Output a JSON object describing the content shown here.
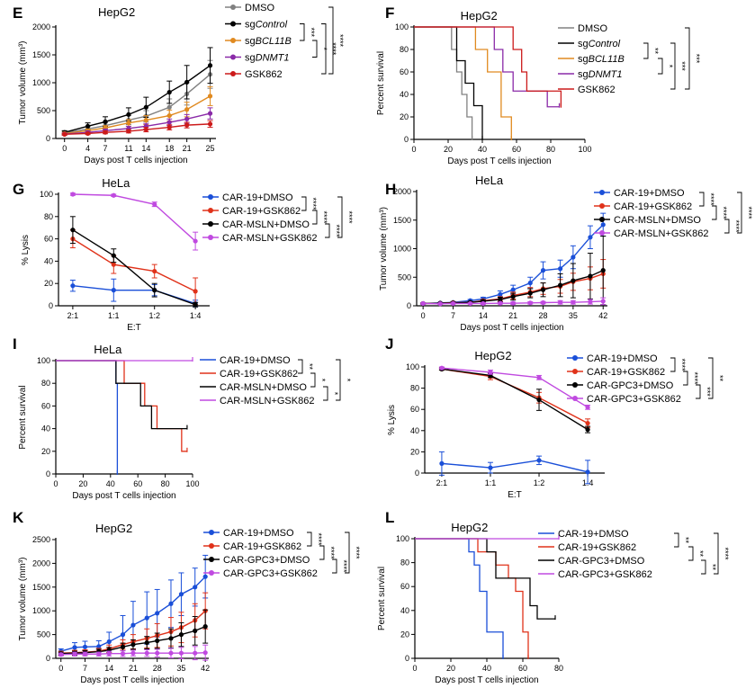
{
  "figure_title": "Tumor growth, cytotoxicity and survival panels",
  "chart_data": [
    {
      "id": "E",
      "label": "E",
      "type": "line",
      "title": "HepG2",
      "xlabel": "Days post T cells injection",
      "ylabel": "Tumor volume (mm³)",
      "x": [
        0,
        4,
        7,
        11,
        14,
        18,
        21,
        25
      ],
      "xlim": [
        -1.5,
        26
      ],
      "ylim": [
        0,
        2000
      ],
      "xticks": [
        0,
        4,
        7,
        11,
        14,
        18,
        21,
        25
      ],
      "yticks": [
        0,
        500,
        1000,
        1500,
        2000
      ],
      "series": [
        {
          "name": "DMSO",
          "color": "#808080",
          "values": [
            100,
            170,
            230,
            330,
            400,
            560,
            800,
            1150
          ],
          "err": [
            30,
            40,
            50,
            80,
            100,
            150,
            200,
            250
          ]
        },
        {
          "name": "sgControl",
          "color": "#000000",
          "values": [
            110,
            220,
            300,
            430,
            560,
            830,
            1010,
            1310
          ],
          "err": [
            30,
            60,
            90,
            120,
            180,
            200,
            300,
            320
          ]
        },
        {
          "name": "sgBCL11B",
          "color": "#e08a20",
          "values": [
            90,
            140,
            190,
            280,
            330,
            410,
            520,
            760
          ],
          "err": [
            20,
            30,
            40,
            60,
            80,
            100,
            130,
            170
          ]
        },
        {
          "name": "sgDNMT1",
          "color": "#8a2aa8",
          "values": [
            80,
            110,
            140,
            180,
            220,
            290,
            350,
            450
          ],
          "err": [
            20,
            25,
            30,
            40,
            50,
            60,
            80,
            100
          ]
        },
        {
          "name": "GSK862",
          "color": "#cc1a1a",
          "values": [
            75,
            90,
            110,
            130,
            160,
            200,
            240,
            260
          ],
          "err": [
            15,
            20,
            25,
            30,
            40,
            45,
            50,
            60
          ]
        }
      ],
      "legend_labels": [
        "DMSO",
        "sgControl",
        "sgBCL11B",
        "sgDNMT1",
        "GSK862"
      ],
      "legend_italic": [
        false,
        true,
        true,
        true,
        false
      ],
      "legend_prefix": [
        "",
        "sg",
        "sg",
        "sg",
        ""
      ],
      "legend_rest": [
        "DMSO",
        "Control",
        "BCL11B",
        "DNMT1",
        "GSK862"
      ],
      "significance": [
        "***",
        "*",
        "****",
        "****"
      ]
    },
    {
      "id": "F",
      "label": "F",
      "type": "line",
      "subtype": "survival",
      "title": "HepG2",
      "xlabel": "Days post T cells injection",
      "ylabel": "Percent survival",
      "xlim": [
        0,
        100
      ],
      "ylim": [
        0,
        100
      ],
      "xticks": [
        0,
        20,
        40,
        60,
        80,
        100
      ],
      "yticks": [
        0,
        20,
        40,
        60,
        80,
        100
      ],
      "series": [
        {
          "name": "DMSO",
          "color": "#808080",
          "x": [
            0,
            22,
            25,
            28,
            31,
            34
          ],
          "values": [
            100,
            80,
            60,
            40,
            20,
            0
          ]
        },
        {
          "name": "sgControl",
          "color": "#000000",
          "x": [
            0,
            25,
            30,
            35,
            40
          ],
          "values": [
            100,
            70,
            50,
            30,
            0
          ]
        },
        {
          "name": "sgBCL11B",
          "color": "#e08a20",
          "x": [
            0,
            36,
            43,
            51,
            57
          ],
          "values": [
            100,
            80,
            60,
            20,
            0
          ]
        },
        {
          "name": "sgDNMT1",
          "color": "#8a2aa8",
          "x": [
            0,
            47,
            52,
            58,
            78,
            85
          ],
          "values": [
            100,
            80,
            60,
            43,
            29,
            29
          ]
        },
        {
          "name": "GSK862",
          "color": "#cc1a1a",
          "x": [
            0,
            58,
            63,
            66,
            70,
            86
          ],
          "values": [
            100,
            80,
            60,
            43,
            43,
            29
          ]
        }
      ],
      "legend_labels": [
        "DMSO",
        "sgControl",
        "sgBCL11B",
        "sgDNMT1",
        "GSK862"
      ],
      "legend_italic": [
        false,
        true,
        true,
        true,
        false
      ],
      "legend_prefix": [
        "",
        "sg",
        "sg",
        "sg",
        ""
      ],
      "legend_rest": [
        "DMSO",
        "Control",
        "BCL11B",
        "DNMT1",
        "GSK862"
      ],
      "significance": [
        "**",
        "*",
        "***",
        "***"
      ]
    },
    {
      "id": "G",
      "label": "G",
      "type": "line",
      "title": "HeLa",
      "xlabel": "E:T",
      "ylabel": "% Lysis",
      "categories": [
        "2:1",
        "1:1",
        "1:2",
        "1:4"
      ],
      "ylim": [
        0,
        100
      ],
      "yticks": [
        0,
        20,
        40,
        60,
        80,
        100
      ],
      "series": [
        {
          "name": "CAR-19+DMSO",
          "color": "#1a4fd8",
          "values": [
            18,
            14,
            14,
            2
          ],
          "err": [
            5,
            10,
            5,
            3
          ]
        },
        {
          "name": "CAR-19+GSK862",
          "color": "#e0321a",
          "values": [
            60,
            37,
            31,
            13
          ],
          "err": [
            8,
            8,
            6,
            12
          ]
        },
        {
          "name": "CAR-MSLN+DMSO",
          "color": "#000000",
          "values": [
            68,
            45,
            14,
            1
          ],
          "err": [
            12,
            6,
            6,
            2
          ]
        },
        {
          "name": "CAR-MSLN+GSK862",
          "color": "#c04ae0",
          "values": [
            100,
            99,
            91,
            58
          ],
          "err": [
            1,
            1,
            2,
            8
          ]
        }
      ],
      "legend_labels": [
        "CAR-19+DMSO",
        "CAR-19+GSK862",
        "CAR-MSLN+DMSO",
        "CAR-MSLN+GSK862"
      ],
      "significance": [
        "****",
        "****",
        "****",
        "****"
      ]
    },
    {
      "id": "H",
      "label": "H",
      "type": "line",
      "title": "HeLa",
      "xlabel": "Days post T cells injection",
      "ylabel": "Tumor volume (mm³)",
      "x": [
        0,
        4,
        7,
        11,
        14,
        18,
        21,
        25,
        28,
        32,
        35,
        39,
        42
      ],
      "xlim": [
        -1.5,
        43
      ],
      "ylim": [
        0,
        2000
      ],
      "xticks": [
        0,
        7,
        14,
        21,
        28,
        35,
        42
      ],
      "yticks": [
        0,
        500,
        1000,
        1500,
        2000
      ],
      "series": [
        {
          "name": "CAR-19+DMSO",
          "color": "#1a4fd8",
          "values": [
            40,
            50,
            60,
            90,
            120,
            200,
            280,
            400,
            620,
            650,
            850,
            1200,
            1420
          ],
          "err": [
            10,
            10,
            15,
            20,
            30,
            60,
            80,
            100,
            150,
            150,
            200,
            200,
            200
          ]
        },
        {
          "name": "CAR-19+GSK862",
          "color": "#e0321a",
          "values": [
            40,
            45,
            55,
            60,
            90,
            120,
            180,
            240,
            300,
            340,
            420,
            480,
            560
          ],
          "err": [
            10,
            10,
            15,
            15,
            20,
            40,
            60,
            80,
            100,
            120,
            150,
            200,
            250
          ]
        },
        {
          "name": "CAR-MSLN+DMSO",
          "color": "#000000",
          "values": [
            40,
            45,
            50,
            60,
            80,
            110,
            160,
            220,
            280,
            360,
            440,
            520,
            620
          ],
          "err": [
            10,
            10,
            15,
            15,
            20,
            40,
            60,
            80,
            120,
            200,
            300,
            400,
            600
          ]
        },
        {
          "name": "CAR-MSLN+GSK862",
          "color": "#c04ae0",
          "values": [
            40,
            35,
            40,
            40,
            40,
            45,
            45,
            50,
            55,
            60,
            60,
            70,
            80
          ],
          "err": [
            10,
            10,
            10,
            10,
            15,
            15,
            20,
            20,
            20,
            30,
            30,
            40,
            60
          ]
        }
      ],
      "legend_labels": [
        "CAR-19+DMSO",
        "CAR-19+GSK862",
        "CAR-MSLN+DMSO",
        "CAR-MSLN+GSK862"
      ],
      "significance": [
        "****",
        "****",
        "****",
        "****"
      ]
    },
    {
      "id": "I",
      "label": "I",
      "type": "line",
      "subtype": "survival",
      "title": "HeLa",
      "xlabel": "Days post T cells injection",
      "ylabel": "Percent survival",
      "xlim": [
        0,
        100
      ],
      "ylim": [
        0,
        100
      ],
      "xticks": [
        0,
        20,
        40,
        60,
        80,
        100
      ],
      "yticks": [
        0,
        20,
        40,
        60,
        80,
        100
      ],
      "series": [
        {
          "name": "CAR-19+DMSO",
          "color": "#1a4fd8",
          "x": [
            0,
            44,
            45
          ],
          "values": [
            100,
            80,
            0
          ]
        },
        {
          "name": "CAR-19+GSK862",
          "color": "#e0321a",
          "x": [
            0,
            50,
            65,
            74,
            92,
            96
          ],
          "values": [
            100,
            80,
            60,
            40,
            20,
            20
          ]
        },
        {
          "name": "CAR-MSLN+DMSO",
          "color": "#000000",
          "x": [
            0,
            44,
            62,
            70,
            94,
            96
          ],
          "values": [
            100,
            80,
            60,
            40,
            40,
            40
          ]
        },
        {
          "name": "CAR-MSLN+GSK862",
          "color": "#c04ae0",
          "x": [
            0,
            100
          ],
          "values": [
            100,
            100
          ]
        }
      ],
      "legend_labels": [
        "CAR-19+DMSO",
        "CAR-19+GSK862",
        "CAR-MSLN+DMSO",
        "CAR-MSLN+GSK862"
      ],
      "significance": [
        "**",
        "*",
        "*",
        "*"
      ]
    },
    {
      "id": "J",
      "label": "J",
      "type": "line",
      "title": "HepG2",
      "xlabel": "E:T",
      "ylabel": "% Lysis",
      "categories": [
        "2:1",
        "1:1",
        "1:2",
        "1:4"
      ],
      "ylim": [
        0,
        100
      ],
      "yticks": [
        0,
        20,
        40,
        60,
        80,
        100
      ],
      "series": [
        {
          "name": "CAR-19+DMSO",
          "color": "#1a4fd8",
          "values": [
            9,
            5,
            12,
            1
          ],
          "err": [
            11,
            5,
            4,
            11
          ]
        },
        {
          "name": "CAR-19+GSK862",
          "color": "#e0321a",
          "values": [
            98,
            91,
            71,
            47
          ],
          "err": [
            1,
            3,
            5,
            4
          ]
        },
        {
          "name": "CAR-GPC3+DMSO",
          "color": "#000000",
          "values": [
            98,
            92,
            69,
            41
          ],
          "err": [
            1,
            2,
            10,
            3
          ]
        },
        {
          "name": "CAR-GPC3+GSK862",
          "color": "#c04ae0",
          "values": [
            99,
            95,
            90,
            62
          ],
          "err": [
            1,
            2,
            2,
            2
          ]
        }
      ],
      "legend_labels": [
        "CAR-19+DMSO",
        "CAR-19+GSK862",
        "CAR-GPC3+DMSO",
        "CAR-GPC3+GSK862"
      ],
      "significance": [
        "****",
        "****",
        "***",
        "**"
      ]
    },
    {
      "id": "K",
      "label": "K",
      "type": "line",
      "title": "HepG2",
      "xlabel": "Days post T cells injection",
      "ylabel": "Tumor volume (mm³)",
      "x": [
        0,
        4,
        7,
        11,
        14,
        18,
        21,
        25,
        28,
        32,
        35,
        39,
        42
      ],
      "xlim": [
        -1.5,
        43
      ],
      "ylim": [
        0,
        2500
      ],
      "xticks": [
        0,
        7,
        14,
        21,
        28,
        35,
        42
      ],
      "yticks": [
        0,
        500,
        1000,
        1500,
        2000,
        2500
      ],
      "series": [
        {
          "name": "CAR-19+DMSO",
          "color": "#1a4fd8",
          "values": [
            150,
            230,
            240,
            250,
            350,
            500,
            700,
            850,
            950,
            1150,
            1350,
            1500,
            1720
          ],
          "err": [
            50,
            100,
            120,
            120,
            200,
            400,
            500,
            550,
            500,
            500,
            450,
            400,
            450
          ]
        },
        {
          "name": "CAR-19+GSK862",
          "color": "#e0321a",
          "values": [
            110,
            120,
            130,
            150,
            200,
            290,
            350,
            420,
            480,
            560,
            650,
            800,
            1000
          ],
          "err": [
            40,
            50,
            50,
            60,
            80,
            100,
            150,
            200,
            250,
            300,
            320,
            350,
            380
          ]
        },
        {
          "name": "CAR-GPC3+DMSO",
          "color": "#000000",
          "values": [
            100,
            110,
            120,
            140,
            170,
            240,
            290,
            330,
            370,
            420,
            500,
            580,
            670
          ],
          "err": [
            30,
            40,
            40,
            50,
            60,
            80,
            100,
            130,
            160,
            200,
            250,
            300,
            350
          ]
        },
        {
          "name": "CAR-GPC3+GSK862",
          "color": "#c04ae0",
          "values": [
            80,
            90,
            90,
            90,
            100,
            100,
            110,
            110,
            110,
            110,
            110,
            110,
            120
          ],
          "err": [
            30,
            40,
            40,
            40,
            50,
            60,
            60,
            70,
            80,
            100,
            120,
            140,
            160
          ]
        }
      ],
      "legend_labels": [
        "CAR-19+DMSO",
        "CAR-19+GSK862",
        "CAR-GPC3+DMSO",
        "CAR-GPC3+GSK862"
      ],
      "significance": [
        "****",
        "****",
        "****",
        "****"
      ]
    },
    {
      "id": "L",
      "label": "L",
      "type": "line",
      "subtype": "survival",
      "title": "HepG2",
      "xlabel": "Days post T cells injection",
      "ylabel": "Percent survival",
      "xlim": [
        0,
        80
      ],
      "ylim": [
        0,
        100
      ],
      "xticks": [
        0,
        20,
        40,
        60,
        80
      ],
      "yticks": [
        0,
        20,
        40,
        60,
        80,
        100
      ],
      "series": [
        {
          "name": "CAR-19+DMSO",
          "color": "#1a4fd8",
          "x": [
            0,
            30,
            33,
            36,
            40,
            44,
            49
          ],
          "values": [
            100,
            89,
            78,
            56,
            22,
            22,
            0
          ]
        },
        {
          "name": "CAR-19+GSK862",
          "color": "#e0321a",
          "x": [
            0,
            35,
            45,
            52,
            56,
            60,
            63
          ],
          "values": [
            100,
            89,
            78,
            67,
            56,
            22,
            0
          ]
        },
        {
          "name": "CAR-GPC3+DMSO",
          "color": "#000000",
          "x": [
            0,
            40,
            45,
            55,
            64,
            68,
            78
          ],
          "values": [
            100,
            89,
            67,
            67,
            44,
            33,
            33
          ]
        },
        {
          "name": "CAR-GPC3+GSK862",
          "color": "#c04ae0",
          "x": [
            0,
            80
          ],
          "values": [
            100,
            100
          ]
        }
      ],
      "legend_labels": [
        "CAR-19+DMSO",
        "CAR-19+GSK862",
        "CAR-GPC3+DMSO",
        "CAR-GPC3+GSK862"
      ],
      "significance": [
        "**",
        "**",
        "**",
        "****"
      ]
    }
  ]
}
